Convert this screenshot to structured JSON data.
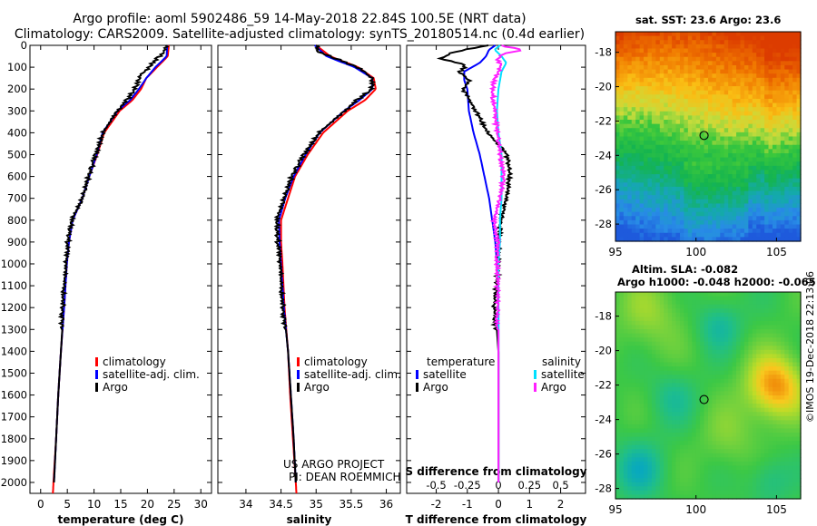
{
  "header": {
    "title_line1": "Argo profile: aoml 5902486_59 14-May-2018 22.84S 100.5E (NRT data)",
    "title_line2": "Climatology: CARS2009. Satellite-adjusted climatology: synTS_20180514.nc (0.4d earlier)"
  },
  "colors": {
    "climatology": "#ff0000",
    "satellite": "#0000ff",
    "argo": "#000000",
    "sal_satellite": "#00e0ff",
    "sal_argo": "#ff20ff"
  },
  "chart_data": [
    {
      "type": "line",
      "name": "temperature",
      "xlabel": "temperature (deg C)",
      "ylabel": "depth",
      "xlim": [
        -2,
        32
      ],
      "ylim": [
        2050,
        0
      ],
      "xticks": [
        0,
        5,
        10,
        15,
        20,
        25,
        30
      ],
      "yticks": [
        0,
        100,
        200,
        300,
        400,
        500,
        600,
        700,
        800,
        900,
        1000,
        1100,
        1200,
        1300,
        1400,
        1500,
        1600,
        1700,
        1800,
        1900,
        2000
      ],
      "legend": [
        {
          "label": "climatology",
          "color": "#ff0000"
        },
        {
          "label": "satellite-adj. clim.",
          "color": "#0000ff"
        },
        {
          "label": "Argo",
          "color": "#000000"
        }
      ],
      "series": [
        {
          "name": "climatology",
          "color": "#ff0000",
          "depth": [
            0,
            50,
            100,
            150,
            200,
            250,
            300,
            400,
            500,
            600,
            700,
            800,
            900,
            1000,
            1200,
            1400,
            1600,
            1800,
            2000,
            2050
          ],
          "values": [
            24,
            23.8,
            21.8,
            19.8,
            18.8,
            17.2,
            14.8,
            11.9,
            10.6,
            9.1,
            7.8,
            6.0,
            5.3,
            4.9,
            4.4,
            3.8,
            3.3,
            2.9,
            2.4,
            2.3
          ]
        },
        {
          "name": "satellite-adj. clim.",
          "color": "#0000ff",
          "depth": [
            0,
            50,
            100,
            150,
            200,
            250,
            300,
            400,
            500,
            600,
            700,
            800,
            900,
            1000,
            1200,
            1400,
            1600,
            1800,
            2000
          ],
          "values": [
            23.7,
            23.6,
            21.5,
            19.8,
            18.4,
            16.8,
            14.4,
            11.6,
            10.5,
            9.1,
            7.8,
            6.0,
            5.3,
            4.9,
            4.4,
            3.8,
            3.3,
            2.9,
            2.5
          ]
        },
        {
          "name": "Argo",
          "color": "#000000",
          "depth": [
            0,
            30,
            60,
            100,
            130,
            150,
            200,
            250,
            300,
            400,
            500,
            600,
            700,
            800,
            900,
            1000,
            1200,
            1400,
            1600,
            1800,
            2000
          ],
          "values": [
            23.7,
            23.4,
            22.0,
            20.5,
            19.0,
            18.8,
            17.7,
            16.4,
            14.5,
            11.8,
            10.5,
            9.2,
            7.9,
            6.1,
            5.3,
            4.9,
            4.3,
            3.8,
            3.3,
            2.9,
            2.5
          ]
        }
      ]
    },
    {
      "type": "line",
      "name": "salinity",
      "xlabel": "salinity",
      "xlim": [
        33.6,
        36.2
      ],
      "ylim": [
        2050,
        0
      ],
      "xticks": [
        34,
        34.5,
        35,
        35.5,
        36
      ],
      "legend": [
        {
          "label": "climatology",
          "color": "#ff0000"
        },
        {
          "label": "satellite-adj. clim.",
          "color": "#0000ff"
        },
        {
          "label": "Argo",
          "color": "#000000"
        }
      ],
      "credit_line1": "US ARGO PROJECT",
      "credit_line2": "PI: DEAN ROEMMICH",
      "series": [
        {
          "name": "climatology",
          "color": "#ff0000",
          "depth": [
            0,
            50,
            100,
            150,
            200,
            250,
            300,
            400,
            500,
            600,
            700,
            800,
            900,
            1000,
            1200,
            1400,
            1600,
            1800,
            2000,
            2050
          ],
          "values": [
            35.0,
            35.2,
            35.6,
            35.82,
            35.85,
            35.7,
            35.45,
            35.1,
            34.88,
            34.7,
            34.6,
            34.5,
            34.5,
            34.52,
            34.55,
            34.6,
            34.63,
            34.67,
            34.71,
            34.72
          ]
        },
        {
          "name": "satellite-adj. clim.",
          "color": "#0000ff",
          "depth": [
            0,
            50,
            100,
            150,
            200,
            250,
            300,
            400,
            500,
            600,
            700,
            800,
            900,
            1000,
            1200,
            1400,
            1600,
            1800,
            2000
          ],
          "values": [
            34.98,
            35.15,
            35.55,
            35.8,
            35.8,
            35.62,
            35.4,
            35.05,
            34.85,
            34.68,
            34.56,
            34.47,
            34.48,
            34.5,
            34.54,
            34.6,
            34.64,
            34.68,
            34.71
          ]
        },
        {
          "name": "Argo",
          "color": "#000000",
          "depth": [
            0,
            30,
            60,
            100,
            150,
            200,
            250,
            300,
            400,
            500,
            600,
            700,
            800,
            900,
            1000,
            1200,
            1400,
            1600,
            1800,
            2000
          ],
          "values": [
            35.02,
            35.05,
            35.3,
            35.6,
            35.82,
            35.8,
            35.6,
            35.42,
            35.05,
            34.84,
            34.67,
            34.55,
            34.46,
            34.47,
            34.5,
            34.54,
            34.6,
            34.64,
            34.68,
            34.71
          ]
        }
      ]
    },
    {
      "type": "line",
      "name": "differences",
      "xlabel": "T difference from climatology",
      "xlabel_top": "S difference from climatology",
      "xlim": [
        -2.95,
        2.8
      ],
      "ylim": [
        2050,
        0
      ],
      "xticks": [
        -2,
        -1,
        0,
        1,
        2
      ],
      "xticks_top": [
        {
          "label": "-0.5",
          "pos": -2.0
        },
        {
          "label": "-0.25",
          "pos": -1.0
        },
        {
          "label": "0",
          "pos": 0
        },
        {
          "label": "0.25",
          "pos": 1.0
        },
        {
          "label": "0.5",
          "pos": 2.0
        }
      ],
      "legend_temperature_title": "temperature",
      "legend_salinity_title": "salinity",
      "legend": [
        {
          "label": "satellite",
          "color": "#0000ff",
          "group": "temperature"
        },
        {
          "label": "Argo",
          "color": "#000000",
          "group": "temperature"
        },
        {
          "label": "satellite",
          "color": "#00e0ff",
          "group": "salinity"
        },
        {
          "label": "Argo",
          "color": "#ff20ff",
          "group": "salinity"
        }
      ],
      "series": [
        {
          "name": "T satellite",
          "color": "#0000ff",
          "depth": [
            0,
            20,
            50,
            80,
            120,
            160,
            200,
            300,
            400,
            500,
            600,
            700,
            800,
            900,
            1000,
            1200,
            1400,
            1600,
            1800,
            2000
          ],
          "values": [
            -0.1,
            -0.3,
            -0.4,
            -0.6,
            -1.1,
            -1.1,
            -1.0,
            -0.95,
            -0.8,
            -0.6,
            -0.45,
            -0.3,
            -0.2,
            -0.1,
            -0.05,
            0,
            0,
            0,
            0,
            0
          ]
        },
        {
          "name": "T Argo",
          "color": "#000000",
          "depth": [
            0,
            30,
            60,
            90,
            120,
            160,
            200,
            300,
            400,
            500,
            600,
            700,
            800,
            900,
            1000,
            1200,
            1400,
            1600,
            1800,
            2000
          ],
          "values": [
            -0.3,
            -1.4,
            -1.8,
            -1.0,
            -1.2,
            -0.9,
            -1.1,
            -0.7,
            -0.3,
            0.3,
            0.4,
            0.3,
            0.1,
            0.05,
            0.05,
            -0.1,
            0,
            0,
            0,
            0
          ]
        },
        {
          "name": "S satellite",
          "color": "#00e0ff",
          "depth": [
            0,
            20,
            50,
            80,
            120,
            160,
            200,
            300,
            400,
            500,
            600,
            700,
            800,
            900,
            1000,
            1200,
            1400,
            1600,
            1800,
            2000
          ],
          "values": [
            0.05,
            -0.12,
            0.1,
            0.25,
            0.1,
            0.05,
            0.0,
            -0.05,
            0.0,
            0.1,
            0.1,
            0.1,
            0.05,
            0.05,
            0.0,
            0.0,
            0.0,
            0.0,
            0.0,
            0.0
          ]
        },
        {
          "name": "S Argo",
          "color": "#ff20ff",
          "depth": [
            0,
            20,
            40,
            60,
            100,
            160,
            200,
            300,
            400,
            500,
            600,
            700,
            800,
            900,
            1000,
            1200,
            1400,
            1600,
            1800,
            2000
          ],
          "values": [
            0.1,
            0.8,
            0.2,
            0.0,
            0.1,
            -0.1,
            -0.15,
            -0.1,
            0.0,
            0.1,
            0.2,
            0.1,
            -0.1,
            0.0,
            0.0,
            0.0,
            0.0,
            0.0,
            0.0,
            0.0
          ]
        }
      ]
    },
    {
      "type": "heatmap",
      "name": "sst_map",
      "title": "sat. SST: 23.6 Argo: 23.6",
      "xlim": [
        95,
        106.5
      ],
      "ylim": [
        -29,
        -16.8
      ],
      "xticks": [
        95,
        100,
        105
      ],
      "yticks": [
        -18,
        -20,
        -22,
        -24,
        -26,
        -28
      ],
      "marker": {
        "lon": 100.5,
        "lat": -22.84
      }
    },
    {
      "type": "heatmap",
      "name": "sla_map",
      "title_line1": "Altim. SLA: -0.082",
      "title_line2": "Argo h1000: -0.048 h2000: -0.065",
      "xlim": [
        95,
        106.5
      ],
      "ylim": [
        -28.6,
        -16.6
      ],
      "xticks": [
        95,
        100,
        105
      ],
      "yticks": [
        -18,
        -20,
        -22,
        -24,
        -26,
        -28
      ],
      "marker": {
        "lon": 100.5,
        "lat": -22.84
      }
    }
  ],
  "footer": {
    "imos_stamp": "©IMOS 19-Dec-2018 22:13:06"
  }
}
